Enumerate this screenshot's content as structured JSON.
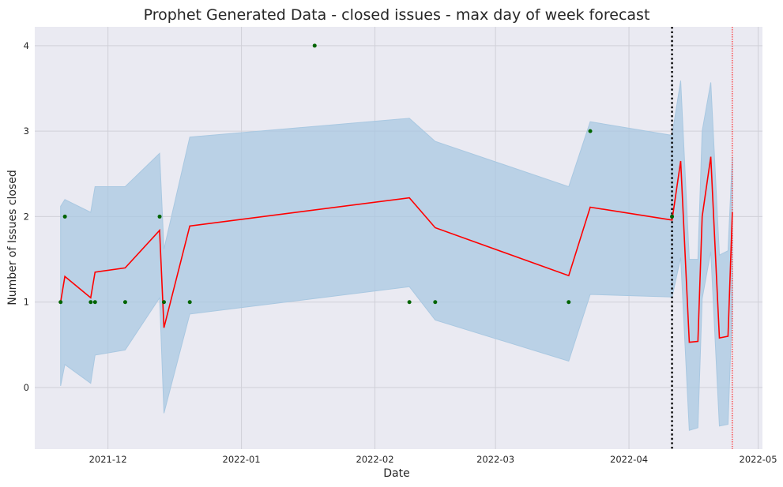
{
  "chart_data": {
    "type": "line",
    "title": "Prophet Generated Data - closed issues - max day of week forecast",
    "xlabel": "Date",
    "ylabel": "Number of Issues closed",
    "x_axis_type": "date",
    "xlim": [
      "2021-11-14",
      "2022-05-02"
    ],
    "ylim": [
      -0.72,
      4.22
    ],
    "x_ticks": [
      {
        "date": "2021-12-01",
        "label": "2021-12"
      },
      {
        "date": "2022-01-01",
        "label": "2022-01"
      },
      {
        "date": "2022-02-01",
        "label": "2022-02"
      },
      {
        "date": "2022-03-01",
        "label": "2022-03"
      },
      {
        "date": "2022-04-01",
        "label": "2022-04"
      },
      {
        "date": "2022-05-01",
        "label": "2022-05"
      }
    ],
    "y_ticks": [
      0,
      1,
      2,
      3,
      4
    ],
    "grid": true,
    "colors": {
      "background": "#eaeaf2",
      "grid": "#d0d0d8",
      "forecast": "#ff0000",
      "uncertainty": "#a9c8e1",
      "observed": "#006400",
      "cutoff": "#000000",
      "end_marker": "#ff0000"
    },
    "observed": {
      "x": [
        "2021-11-20",
        "2021-11-21",
        "2021-11-27",
        "2021-11-28",
        "2021-12-05",
        "2021-12-13",
        "2021-12-14",
        "2021-12-20",
        "2022-01-18",
        "2022-02-09",
        "2022-02-15",
        "2022-03-18",
        "2022-03-23",
        "2022-04-11"
      ],
      "y": [
        1,
        2,
        1,
        1,
        1,
        2,
        1,
        1,
        4,
        1,
        1,
        1,
        3,
        2
      ]
    },
    "forecast": {
      "x": [
        "2021-11-20",
        "2021-11-21",
        "2021-11-27",
        "2021-11-28",
        "2021-12-05",
        "2021-12-13",
        "2021-12-14",
        "2021-12-20",
        "2022-02-09",
        "2022-02-15",
        "2022-03-18",
        "2022-03-23",
        "2022-04-11",
        "2022-04-13",
        "2022-04-15",
        "2022-04-17",
        "2022-04-18",
        "2022-04-20",
        "2022-04-22",
        "2022-04-24",
        "2022-04-25"
      ],
      "yhat": [
        1.0,
        1.3,
        1.05,
        1.35,
        1.4,
        1.84,
        0.7,
        1.89,
        2.22,
        1.87,
        1.31,
        2.11,
        1.96,
        2.65,
        0.53,
        0.54,
        2.0,
        2.7,
        0.58,
        0.6,
        2.05
      ],
      "lower": [
        0.02,
        0.27,
        0.05,
        0.38,
        0.44,
        1.05,
        -0.3,
        0.86,
        1.18,
        0.79,
        0.31,
        1.09,
        1.06,
        1.52,
        -0.5,
        -0.47,
        1.04,
        1.59,
        -0.45,
        -0.43,
        0.97
      ],
      "upper": [
        2.12,
        2.2,
        2.05,
        2.35,
        2.35,
        2.74,
        1.62,
        2.93,
        3.15,
        2.88,
        2.35,
        3.11,
        2.95,
        3.59,
        1.5,
        1.5,
        3.0,
        3.57,
        1.55,
        1.6,
        2.7
      ]
    },
    "vlines": [
      {
        "date": "2022-04-11",
        "style": "dotted",
        "color": "#000000"
      },
      {
        "date": "2022-04-25",
        "style": "dotted",
        "color": "#ff0000"
      }
    ]
  }
}
